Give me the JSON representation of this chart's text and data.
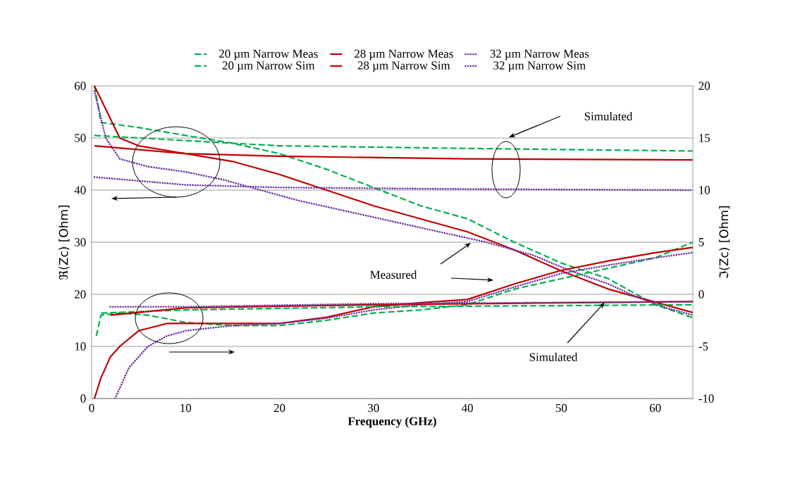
{
  "chart_data": {
    "type": "line",
    "xlabel": "Frequency (GHz)",
    "ylabel": "ℜ(Zc) [Ohm]",
    "y2label": "ℑ(Zc) [Ohm]",
    "xlim": [
      0,
      64
    ],
    "xticks": [
      0,
      10,
      20,
      30,
      40,
      50,
      60
    ],
    "ylim": [
      0,
      60
    ],
    "yticks": [
      0,
      10,
      20,
      30,
      40,
      50,
      60
    ],
    "y2lim": [
      -10,
      20
    ],
    "y2ticks": [
      -10,
      -5,
      0,
      5,
      10,
      15,
      20
    ],
    "grid": "y",
    "legend": "top",
    "annotations": [
      "Simulated",
      "Measured",
      {
        "text": "Simulated",
        "x": 54.6,
        "y": 18.4
      }
    ],
    "series": [
      {
        "name": "20 µm Narrow Meas",
        "color": "#00b050",
        "line_style": "dashed",
        "x": [
          0.3,
          1,
          5,
          10,
          15,
          20,
          25,
          30,
          35,
          40,
          45,
          50,
          55,
          58,
          60,
          64
        ],
        "values": [
          60,
          53,
          52,
          50.5,
          49,
          47,
          44,
          40.5,
          37,
          34.5,
          30,
          26,
          23,
          20,
          18,
          15.5
        ]
      },
      {
        "name": "28 µm Narrow Meas",
        "color": "#c00000",
        "line_style": "solid",
        "x": [
          0.3,
          3,
          5,
          10,
          15,
          20,
          25,
          30,
          35,
          40,
          45,
          50,
          55,
          60,
          64
        ],
        "values": [
          60,
          50,
          48.5,
          47,
          45.5,
          43,
          40,
          37,
          34.5,
          32,
          28.5,
          24.5,
          21,
          18.5,
          16.5
        ]
      },
      {
        "name": "32 µm Narrow Meas",
        "color": "#7030a0",
        "line_style": "dotted",
        "x": [
          0.3,
          1.5,
          3,
          6,
          10,
          14,
          18,
          22,
          27,
          32,
          37,
          42,
          47,
          51,
          55,
          58,
          61,
          64
        ],
        "values": [
          59,
          50,
          46,
          44.5,
          43.5,
          42,
          40,
          38,
          36,
          34,
          32,
          30,
          27.5,
          24.5,
          22,
          19.5,
          17.5,
          16
        ]
      },
      {
        "name": "20 µm Narrow Sim",
        "color": "#00b050",
        "line_style": "dashed",
        "x": [
          0.3,
          10,
          20,
          40,
          64
        ],
        "values": [
          50.5,
          49.5,
          48.5,
          48,
          47.5
        ]
      },
      {
        "name": "28 µm Narrow Sim",
        "color": "#c00000",
        "line_style": "solid",
        "x": [
          0.3,
          10,
          20,
          40,
          64
        ],
        "values": [
          48.5,
          47,
          46.5,
          46,
          45.8
        ]
      },
      {
        "name": "32 µm Narrow Sim",
        "color": "#7030a0",
        "line_style": "dotted",
        "x": [
          0.3,
          10,
          20,
          40,
          64
        ],
        "values": [
          42.5,
          41,
          40.5,
          40.2,
          40
        ]
      },
      {
        "color": "#00b050",
        "line_style": "dashed",
        "axis": "y2",
        "x": [
          0.5,
          1,
          3,
          6,
          10,
          15,
          20,
          25,
          30,
          35,
          40,
          45,
          50,
          55,
          60,
          64
        ],
        "values": [
          -4,
          -2,
          -1.8,
          -2,
          -2.7,
          -3,
          -3,
          -2.5,
          -1.8,
          -1.5,
          -1,
          0.5,
          1.5,
          2.5,
          3.5,
          5
        ]
      },
      {
        "color": "#c00000",
        "line_style": "solid",
        "axis": "y2",
        "x": [
          0.3,
          1,
          2,
          3,
          5,
          8,
          15,
          20,
          25,
          30,
          35,
          40,
          45,
          50,
          55,
          60,
          64
        ],
        "values": [
          -10,
          -8,
          -6,
          -5,
          -3.5,
          -2.8,
          -2.8,
          -2.8,
          -2.2,
          -1.2,
          -0.8,
          -0.5,
          1,
          2.3,
          3.2,
          4,
          4.5
        ]
      },
      {
        "color": "#7030a0",
        "line_style": "dotted",
        "axis": "y2",
        "x": [
          2.5,
          4,
          6,
          8,
          10,
          15,
          20,
          25,
          30,
          35,
          40,
          45,
          50,
          55,
          60,
          64
        ],
        "values": [
          -10,
          -7,
          -5,
          -4,
          -3.5,
          -3,
          -2.8,
          -2.3,
          -1.5,
          -1,
          -0.7,
          0.7,
          2,
          2.8,
          3.5,
          4
        ]
      },
      {
        "color": "#00b050",
        "line_style": "dashed",
        "axis": "y2",
        "x": [
          1,
          10,
          30,
          64
        ],
        "values": [
          -1.8,
          -1.5,
          -1.2,
          -1
        ]
      },
      {
        "color": "#c00000",
        "line_style": "solid",
        "axis": "y2",
        "x": [
          2,
          10,
          30,
          64
        ],
        "values": [
          -2,
          -1.3,
          -1,
          -0.7
        ]
      },
      {
        "color": "#7030a0",
        "line_style": "dotted",
        "axis": "y2",
        "x": [
          2,
          10,
          30,
          64
        ],
        "values": [
          -1.2,
          -1.2,
          -0.9,
          -0.7
        ]
      }
    ]
  }
}
